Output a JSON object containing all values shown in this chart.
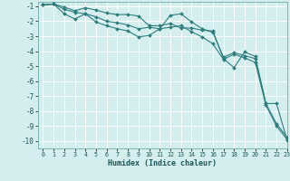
{
  "title": "",
  "xlabel": "Humidex (Indice chaleur)",
  "background_color": "#d4eeee",
  "grid_color": "#ffffff",
  "line_color": "#2e7d7d",
  "xlim": [
    -0.5,
    23
  ],
  "ylim": [
    -10.5,
    -0.7
  ],
  "xticks": [
    0,
    1,
    2,
    3,
    4,
    5,
    6,
    7,
    8,
    9,
    10,
    11,
    12,
    13,
    14,
    15,
    16,
    17,
    18,
    19,
    20,
    21,
    22,
    23
  ],
  "yticks": [
    -1,
    -2,
    -3,
    -4,
    -5,
    -6,
    -7,
    -8,
    -9,
    -10
  ],
  "line1_x": [
    0,
    1,
    2,
    3,
    4,
    5,
    6,
    7,
    8,
    9,
    10,
    11,
    12,
    13,
    14,
    15,
    16,
    17,
    18,
    19,
    20,
    21,
    22,
    23
  ],
  "line1_y": [
    -0.9,
    -0.85,
    -1.05,
    -1.3,
    -1.1,
    -1.25,
    -1.45,
    -1.55,
    -1.55,
    -1.65,
    -2.3,
    -2.3,
    -2.15,
    -2.45,
    -2.45,
    -2.6,
    -2.65,
    -4.5,
    -5.1,
    -4.05,
    -4.35,
    -7.5,
    -7.5,
    -9.95
  ],
  "line2_x": [
    0,
    1,
    2,
    3,
    4,
    5,
    6,
    7,
    8,
    9,
    10,
    11,
    12,
    13,
    14,
    15,
    16,
    17,
    18,
    19,
    20,
    21,
    22,
    23
  ],
  "line2_y": [
    -0.9,
    -0.85,
    -1.2,
    -1.4,
    -1.5,
    -1.7,
    -2.0,
    -2.1,
    -2.25,
    -2.5,
    -2.4,
    -2.5,
    -1.6,
    -1.5,
    -2.05,
    -2.5,
    -2.75,
    -4.4,
    -4.1,
    -4.3,
    -4.5,
    -7.5,
    -8.85,
    -9.75
  ],
  "line3_x": [
    0,
    1,
    2,
    3,
    4,
    5,
    6,
    7,
    8,
    9,
    10,
    11,
    12,
    13,
    14,
    15,
    16,
    17,
    18,
    19,
    20,
    21,
    22,
    23
  ],
  "line3_y": [
    -0.9,
    -0.85,
    -1.5,
    -1.85,
    -1.5,
    -2.05,
    -2.3,
    -2.5,
    -2.65,
    -3.05,
    -2.95,
    -2.5,
    -2.4,
    -2.3,
    -2.7,
    -3.05,
    -3.5,
    -4.55,
    -4.2,
    -4.45,
    -4.75,
    -7.6,
    -9.0,
    -9.9
  ]
}
